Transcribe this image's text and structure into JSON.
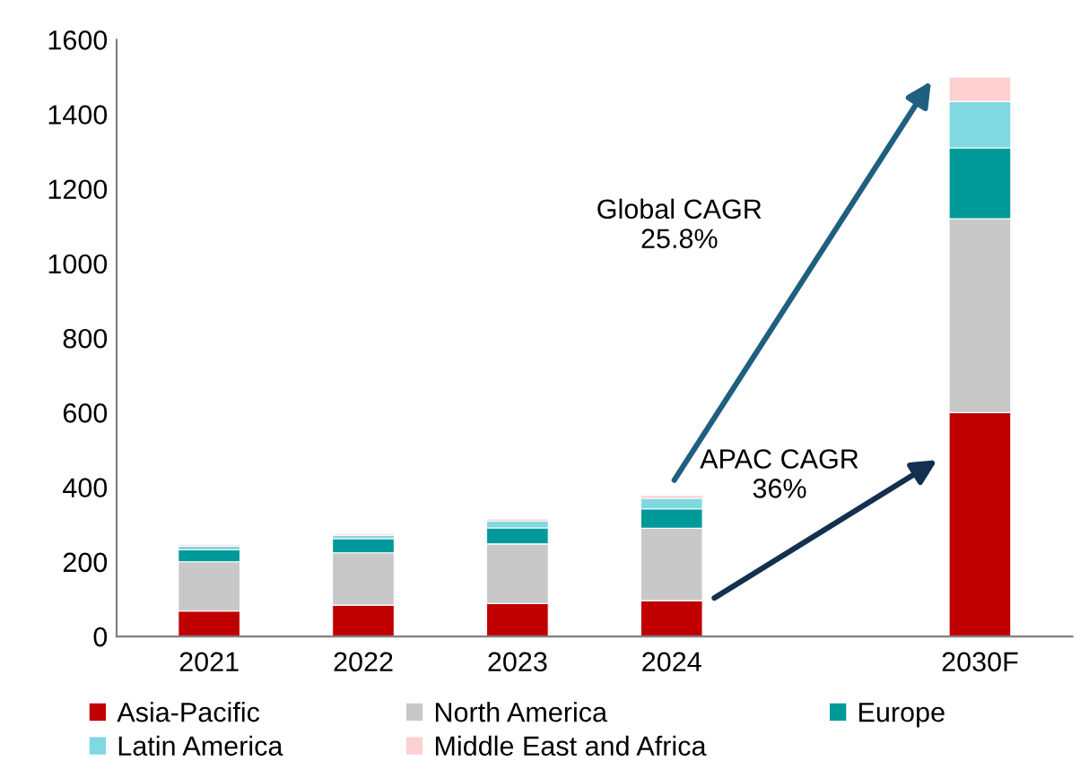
{
  "chart_data": {
    "type": "bar",
    "stacked": true,
    "categories": [
      "2021",
      "2022",
      "2023",
      "2024",
      null,
      "2030F"
    ],
    "series": [
      {
        "name": "Asia-Pacific",
        "color": "#c00000",
        "values": [
          68,
          84,
          88,
          96,
          null,
          600
        ]
      },
      {
        "name": "North America",
        "color": "#c8c8c8",
        "values": [
          132,
          140,
          160,
          194,
          null,
          520
        ]
      },
      {
        "name": "Europe",
        "color": "#009999",
        "values": [
          32,
          38,
          43,
          52,
          null,
          190
        ]
      },
      {
        "name": "Latin America",
        "color": "#80d8e0",
        "values": [
          10,
          9,
          18,
          28,
          null,
          124
        ]
      },
      {
        "name": "Middle East and Africa",
        "color": "#ffd0d0",
        "values": [
          5,
          5,
          6,
          8,
          null,
          66
        ]
      }
    ],
    "ylim": [
      0,
      1600
    ],
    "yticks": [
      0,
      200,
      400,
      600,
      800,
      1000,
      1200,
      1400,
      1600
    ],
    "grid": false,
    "legend": "bottom",
    "annotations": [
      "Global CAGR\n25.8%",
      "APAC CAGR\n36%"
    ]
  }
}
